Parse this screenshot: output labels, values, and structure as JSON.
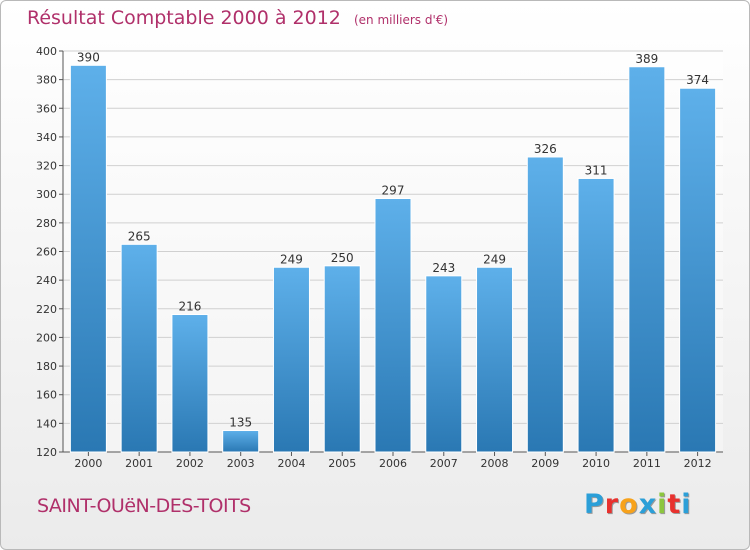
{
  "header": {
    "title": "Résultat Comptable 2000 à 2012",
    "unit_note": "(en milliers d'€)"
  },
  "footer": {
    "commune": "SAINT-OUëN-DES-TOITS",
    "logo_letters": [
      "P",
      "r",
      "o",
      "x",
      "i",
      "t",
      "i"
    ],
    "logo_colors": [
      "#2b9fd8",
      "#e8312e",
      "#f7a21b",
      "#2b9fd8",
      "#8cc63f",
      "#e8312e",
      "#2b9fd8"
    ]
  },
  "colors": {
    "title": "#b0306a",
    "bar_light": "#5eb0ea",
    "bar_dark": "#2a78b3",
    "grid": "#d0d0d0"
  },
  "chart_data": {
    "type": "bar",
    "title": "Résultat Comptable 2000 à 2012",
    "categories": [
      "2000",
      "2001",
      "2002",
      "2003",
      "2004",
      "2005",
      "2006",
      "2007",
      "2008",
      "2009",
      "2010",
      "2011",
      "2012"
    ],
    "values": [
      390,
      265,
      216,
      135,
      249,
      250,
      297,
      243,
      249,
      326,
      311,
      389,
      374
    ],
    "ylim": [
      120,
      400
    ],
    "yticks": [
      120,
      140,
      160,
      180,
      200,
      220,
      240,
      260,
      280,
      300,
      320,
      340,
      360,
      380,
      400
    ],
    "grid": true
  }
}
